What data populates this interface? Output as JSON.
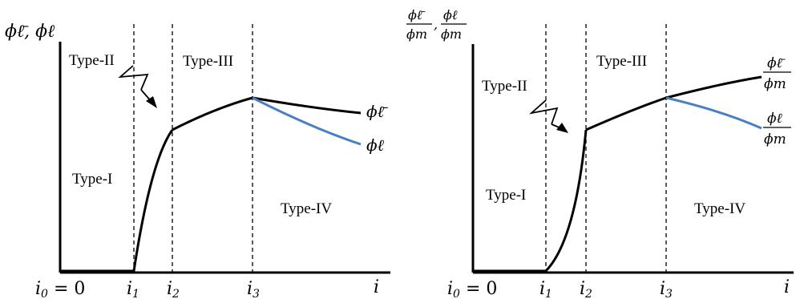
{
  "left_panel": {
    "y_axis_label": "ϕℓ̄, ϕℓ",
    "regions": {
      "type_i": "Type-I",
      "type_ii": "Type-II",
      "type_iii": "Type-III",
      "type_iv": "Type-IV"
    },
    "x_ticks": {
      "i0": "i",
      "i0_sub": "0",
      "i0_rest": " = 0",
      "i1": "i",
      "i1_sub": "1",
      "i2": "i",
      "i2_sub": "2",
      "i3": "i",
      "i3_sub": "3",
      "axis": "i"
    },
    "curve_labels": {
      "phi_lbar": "ϕℓ̄",
      "phi_l": "ϕℓ"
    }
  },
  "right_panel": {
    "y_axis_label": {
      "num1": "ϕℓ̄",
      "den1": "ϕm",
      "sep": ",",
      "num2": "ϕℓ",
      "den2": "ϕm"
    },
    "regions": {
      "type_i": "Type-I",
      "type_ii": "Type-II",
      "type_iii": "Type-III",
      "type_iv": "Type-IV"
    },
    "x_ticks": {
      "i0": "i",
      "i0_sub": "0",
      "i0_rest": " = 0",
      "i1": "i",
      "i1_sub": "1",
      "i2": "i",
      "i2_sub": "2",
      "i3": "i",
      "i3_sub": "3",
      "axis": "i"
    },
    "curve_labels": {
      "top_num": "ϕℓ̄",
      "top_den": "ϕm",
      "bot_num": "ϕℓ",
      "bot_den": "ϕm"
    }
  },
  "colors": {
    "black_curve": "#000000",
    "blue_curve": "#4a7fc1",
    "axis": "#000000"
  }
}
